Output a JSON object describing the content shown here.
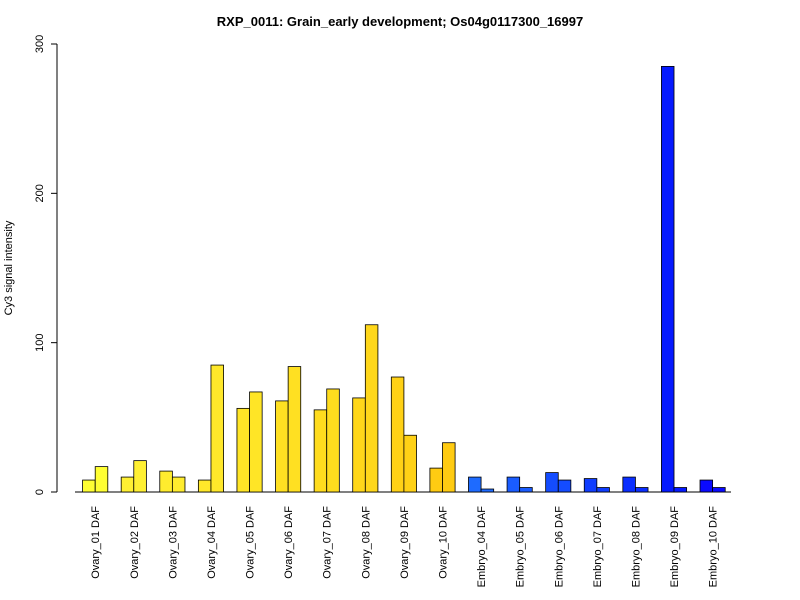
{
  "chart_data": {
    "type": "bar",
    "title": "RXP_0011: Grain_early development; Os04g0117300_16997",
    "xlabel": "",
    "ylabel": "Cy3 signal intensity",
    "ylim": [
      0,
      300
    ],
    "yticks": [
      0,
      100,
      200,
      300
    ],
    "categories": [
      "Ovary_01 DAF",
      "Ovary_02 DAF",
      "Ovary_03 DAF",
      "Ovary_04 DAF",
      "Ovary_05 DAF",
      "Ovary_06 DAF",
      "Ovary_07 DAF",
      "Ovary_08 DAF",
      "Ovary_09 DAF",
      "Ovary_10 DAF",
      "Embryo_04 DAF",
      "Embryo_05 DAF",
      "Embryo_06 DAF",
      "Embryo_07 DAF",
      "Embryo_08 DAF",
      "Embryo_09 DAF",
      "Embryo_10 DAF"
    ],
    "group_colors": [
      "#ffff33",
      "#fff033",
      "#ffec2e",
      "#ffe82a",
      "#ffe526",
      "#ffe022",
      "#ffdc1e",
      "#ffd71a",
      "#ffd116",
      "#ffcb12",
      "#1e6bff",
      "#1a5cff",
      "#144cff",
      "#0f3dff",
      "#0a2eff",
      "#0519ff",
      "#0a0aff"
    ],
    "series": [
      {
        "values": [
          8,
          10,
          14,
          8,
          56,
          61,
          55,
          63,
          77,
          16,
          10,
          10,
          13,
          9,
          10,
          285,
          8
        ]
      },
      {
        "values": [
          17,
          21,
          10,
          85,
          67,
          84,
          69,
          112,
          38,
          33,
          2,
          3,
          8,
          3,
          3,
          3,
          3
        ]
      }
    ],
    "grid": false,
    "legend": "none"
  }
}
